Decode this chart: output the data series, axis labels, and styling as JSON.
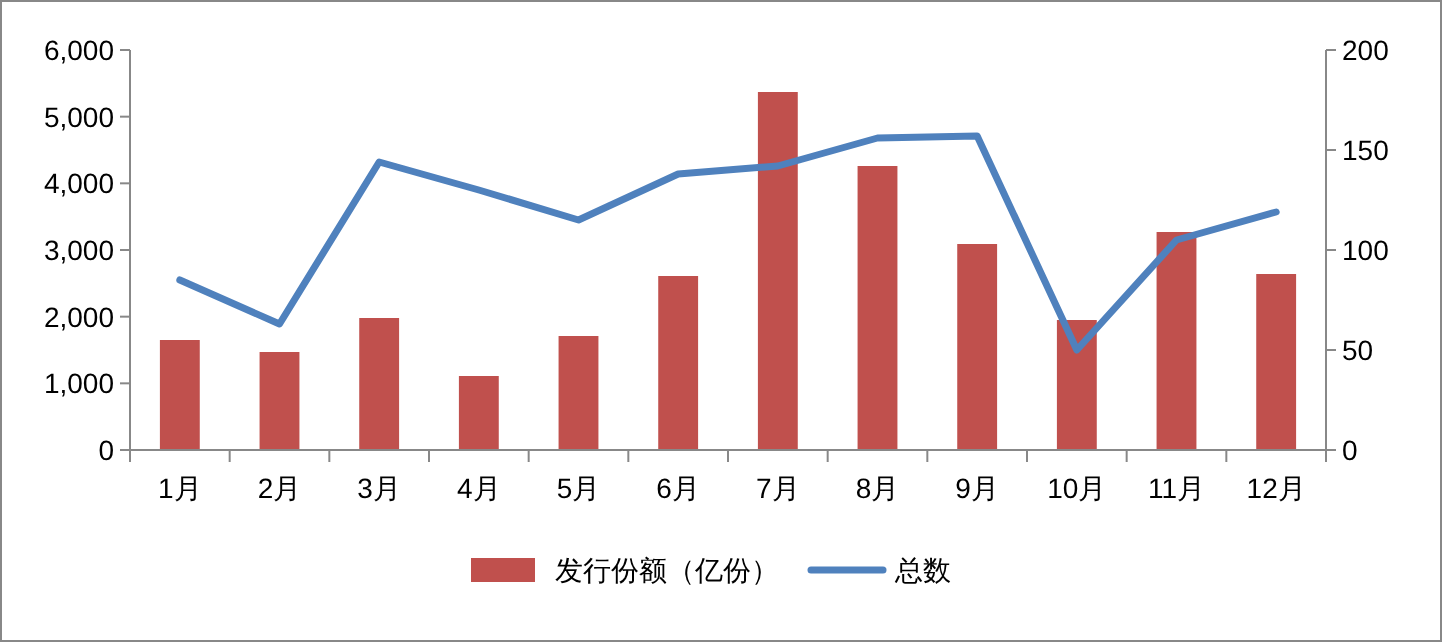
{
  "chart_data": {
    "type": "bar",
    "categories": [
      "1月",
      "2月",
      "3月",
      "4月",
      "5月",
      "6月",
      "7月",
      "8月",
      "9月",
      "10月",
      "11月",
      "12月"
    ],
    "series": [
      {
        "name": "发行份额（亿份）",
        "color": "#c0504d",
        "values": [
          1650,
          1470,
          1980,
          1110,
          1710,
          2610,
          5370,
          4260,
          3090,
          1950,
          3270,
          2640
        ]
      },
      {
        "name": "总数",
        "type": "line",
        "axis": "y2",
        "color": "#4f81bd",
        "values": [
          85,
          63,
          144,
          130,
          115,
          138,
          142,
          156,
          157,
          50,
          105,
          119
        ]
      }
    ],
    "ylim": [
      0,
      6000
    ],
    "yticks": [
      0,
      {
        "value": 1000,
        "label": "1,000"
      },
      {
        "value": 2000,
        "label": "2,000"
      },
      {
        "value": 3000,
        "label": "3,000"
      },
      {
        "value": 4000,
        "label": "4,000"
      },
      {
        "value": 5000,
        "label": "5,000"
      },
      {
        "value": 6000,
        "label": "6,000"
      }
    ],
    "y2lim": [
      0,
      200
    ],
    "y2ticks": [
      0,
      50,
      100,
      150,
      200
    ],
    "legend": "bottom",
    "marker": "none",
    "line_style": "solid",
    "grid": false
  }
}
